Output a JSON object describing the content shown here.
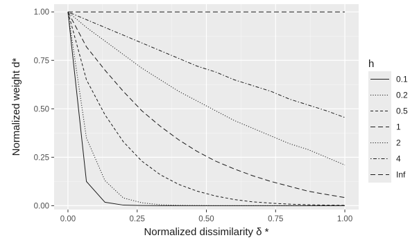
{
  "chart_data": {
    "type": "line",
    "xlabel": "Normalized dissimilarity δ *",
    "ylabel": "Normalized weight d*",
    "xlim": [
      -0.05,
      1.05
    ],
    "ylim": [
      -0.02,
      1.04
    ],
    "x_ticks": [
      0.0,
      0.25,
      0.5,
      0.75,
      1.0
    ],
    "x_tick_labels": [
      "0.00",
      "0.25",
      "0.50",
      "0.75",
      "1.00"
    ],
    "y_ticks": [
      0.0,
      0.25,
      0.5,
      0.75,
      1.0
    ],
    "y_tick_labels": [
      "0.00",
      "0.25",
      "0.50",
      "0.75",
      "1.00"
    ],
    "grid": true,
    "legend": {
      "title": "h",
      "placement": "right"
    },
    "x": [
      0.0,
      0.0667,
      0.1333,
      0.2,
      0.2667,
      0.3333,
      0.4,
      0.4667,
      0.5333,
      0.6,
      0.6667,
      0.7333,
      0.8,
      0.8667,
      0.9333,
      1.0
    ],
    "series": [
      {
        "name": "0.1",
        "dash": "solid",
        "values": [
          1.0,
          0.125,
          0.018,
          0.003,
          0.001,
          0.0,
          0.0,
          0.0,
          0.0,
          0.0,
          0.0,
          0.0,
          0.0,
          0.0,
          0.0,
          0.0
        ]
      },
      {
        "name": "0.2",
        "dash": "dotted",
        "values": [
          1.0,
          0.35,
          0.13,
          0.04,
          0.015,
          0.005,
          0.002,
          0.001,
          0.0,
          0.0,
          0.0,
          0.0,
          0.0,
          0.0,
          0.0,
          0.0
        ]
      },
      {
        "name": "0.5",
        "dash": "dashed",
        "values": [
          1.0,
          0.65,
          0.47,
          0.33,
          0.23,
          0.16,
          0.11,
          0.075,
          0.05,
          0.032,
          0.02,
          0.013,
          0.008,
          0.005,
          0.003,
          0.002
        ]
      },
      {
        "name": "1",
        "dash": "longdash",
        "values": [
          1.0,
          0.82,
          0.7,
          0.59,
          0.49,
          0.41,
          0.34,
          0.28,
          0.23,
          0.19,
          0.155,
          0.125,
          0.1,
          0.075,
          0.058,
          0.042
        ]
      },
      {
        "name": "2",
        "dash": "dotted",
        "values": [
          1.0,
          0.92,
          0.85,
          0.78,
          0.71,
          0.65,
          0.59,
          0.54,
          0.49,
          0.44,
          0.4,
          0.36,
          0.32,
          0.29,
          0.25,
          0.21
        ]
      },
      {
        "name": "4",
        "dash": "dotdash",
        "values": [
          1.0,
          0.96,
          0.92,
          0.88,
          0.84,
          0.8,
          0.76,
          0.72,
          0.69,
          0.65,
          0.62,
          0.59,
          0.55,
          0.52,
          0.49,
          0.455
        ]
      },
      {
        "name": "Inf",
        "dash": "longdash",
        "values": [
          1.0,
          1.0,
          1.0,
          1.0,
          1.0,
          1.0,
          1.0,
          1.0,
          1.0,
          1.0,
          1.0,
          1.0,
          1.0,
          1.0,
          1.0,
          1.0
        ]
      }
    ]
  }
}
